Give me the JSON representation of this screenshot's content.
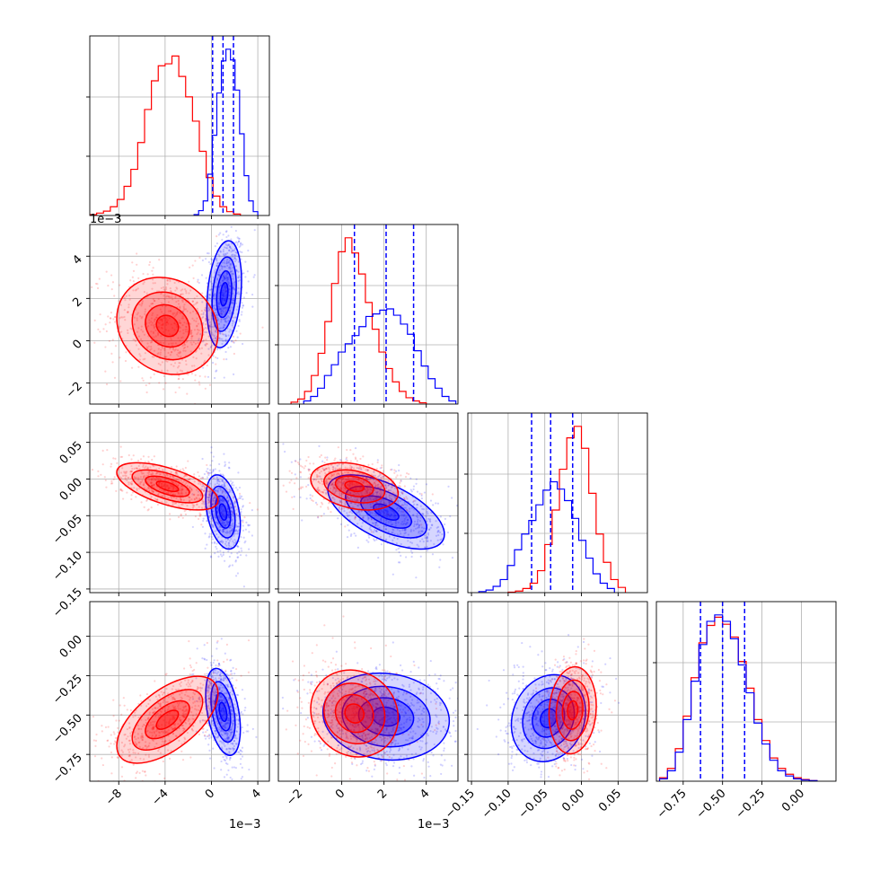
{
  "chart_data": {
    "type": "corner",
    "grid": true,
    "series": [
      {
        "color": "#ff0000"
      },
      {
        "color": "#0000ff"
      }
    ],
    "dimensions": [
      {
        "range": [
          -10.5,
          5.0
        ],
        "ticks": [
          -8,
          -4,
          0,
          4
        ],
        "tick_labels": [
          "−8",
          "−4",
          "0",
          "4"
        ],
        "offset_label": "1e−3"
      },
      {
        "range": [
          -3.0,
          5.5
        ],
        "ticks": [
          -2,
          0,
          2,
          4
        ],
        "tick_labels": [
          "−2",
          "0",
          "2",
          "4"
        ],
        "offset_label": "1e−3"
      },
      {
        "range": [
          -0.155,
          0.09
        ],
        "ticks": [
          -0.15,
          -0.1,
          -0.05,
          0.0,
          0.05
        ],
        "tick_labels": [
          "−0.15",
          "−0.10",
          "−0.05",
          "0.00",
          "0.05"
        ],
        "offset_label": ""
      },
      {
        "range": [
          -0.92,
          0.22
        ],
        "ticks": [
          -0.75,
          -0.5,
          -0.25,
          0.0
        ],
        "tick_labels": [
          "−0.75",
          "−0.50",
          "−0.25",
          "0.00"
        ],
        "offset_label": ""
      }
    ],
    "histograms": [
      {
        "red": {
          "edges_range": [
            -10.5,
            2.5
          ],
          "counts": [
            2,
            5,
            9,
            18,
            33,
            60,
            95,
            150,
            218,
            277,
            308,
            312,
            328,
            286,
            244,
            194,
            132,
            78,
            40,
            18,
            8,
            3
          ]
        },
        "blue": {
          "edges_range": [
            -1.5,
            4.0
          ],
          "counts": [
            2,
            10,
            30,
            85,
            165,
            252,
            318,
            342,
            320,
            258,
            168,
            82,
            30,
            8
          ]
        },
        "quantile_lines": [
          0.1,
          1.0,
          1.9
        ]
      },
      {
        "red": {
          "edges_range": [
            -2.4,
            4.0
          ],
          "counts": [
            3,
            8,
            20,
            45,
            80,
            130,
            190,
            240,
            262,
            238,
            205,
            160,
            118,
            82,
            56,
            35,
            20,
            10,
            5,
            2
          ]
        },
        "blue": {
          "edges_range": [
            -1.8,
            5.4
          ],
          "counts": [
            5,
            12,
            25,
            45,
            62,
            82,
            95,
            108,
            122,
            138,
            142,
            148,
            150,
            140,
            126,
            110,
            84,
            60,
            40,
            25,
            12,
            5
          ]
        },
        "quantile_lines": [
          0.6,
          2.1,
          3.4
        ]
      },
      {
        "red": {
          "edges_range": [
            -0.1,
            0.06
          ],
          "counts": [
            1,
            3,
            8,
            18,
            42,
            92,
            158,
            236,
            296,
            318,
            276,
            190,
            112,
            58,
            25,
            10
          ]
        },
        "blue": {
          "edges_range": [
            -0.14,
            0.045
          ],
          "counts": [
            2,
            5,
            12,
            25,
            52,
            82,
            112,
            138,
            168,
            196,
            212,
            198,
            176,
            142,
            100,
            66,
            36,
            18,
            8
          ]
        },
        "quantile_lines": [
          -0.068,
          -0.042,
          -0.012
        ]
      },
      {
        "red": {
          "edges_range": [
            -0.9,
            0.1
          ],
          "counts": [
            6,
            22,
            56,
            112,
            178,
            238,
            268,
            282,
            270,
            248,
            206,
            160,
            106,
            70,
            40,
            22,
            12,
            6,
            3,
            1
          ]
        },
        "blue": {
          "edges_range": [
            -0.9,
            0.1
          ],
          "counts": [
            4,
            18,
            50,
            106,
            172,
            235,
            275,
            286,
            275,
            245,
            200,
            152,
            100,
            64,
            36,
            18,
            9,
            4,
            2,
            1
          ]
        },
        "quantile_lines": [
          -0.64,
          -0.5,
          -0.36
        ]
      }
    ],
    "pairs": [
      {
        "row": 1,
        "col": 0,
        "red": {
          "mean": [
            -3.8,
            0.7
          ],
          "sd": [
            1.9,
            1.0
          ],
          "rho": -0.15
        },
        "blue": {
          "mean": [
            1.1,
            2.2
          ],
          "sd": [
            0.65,
            1.1
          ],
          "rho": 0.25
        }
      },
      {
        "row": 2,
        "col": 0,
        "red": {
          "mean": [
            -3.8,
            -0.01
          ],
          "sd": [
            1.9,
            0.014
          ],
          "rho": -0.6
        },
        "blue": {
          "mean": [
            1.0,
            -0.045
          ],
          "sd": [
            0.65,
            0.022
          ],
          "rho": -0.35
        }
      },
      {
        "row": 2,
        "col": 1,
        "red": {
          "mean": [
            0.6,
            -0.01
          ],
          "sd": [
            0.9,
            0.014
          ],
          "rho": -0.3
        },
        "blue": {
          "mean": [
            2.1,
            -0.045
          ],
          "sd": [
            1.2,
            0.022
          ],
          "rho": -0.6
        }
      },
      {
        "row": 3,
        "col": 0,
        "red": {
          "mean": [
            -3.8,
            -0.53
          ],
          "sd": [
            1.9,
            0.12
          ],
          "rho": 0.6
        },
        "blue": {
          "mean": [
            1.0,
            -0.48
          ],
          "sd": [
            0.65,
            0.12
          ],
          "rho": -0.4
        }
      },
      {
        "row": 3,
        "col": 1,
        "red": {
          "mean": [
            0.6,
            -0.49
          ],
          "sd": [
            0.9,
            0.12
          ],
          "rho": -0.1
        },
        "blue": {
          "mean": [
            2.1,
            -0.51
          ],
          "sd": [
            1.3,
            0.12
          ],
          "rho": -0.1
        }
      },
      {
        "row": 3,
        "col": 2,
        "red": {
          "mean": [
            -0.012,
            -0.47
          ],
          "sd": [
            0.014,
            0.12
          ],
          "rho": 0.1
        },
        "blue": {
          "mean": [
            -0.045,
            -0.52
          ],
          "sd": [
            0.022,
            0.12
          ],
          "rho": 0.15
        }
      }
    ]
  }
}
